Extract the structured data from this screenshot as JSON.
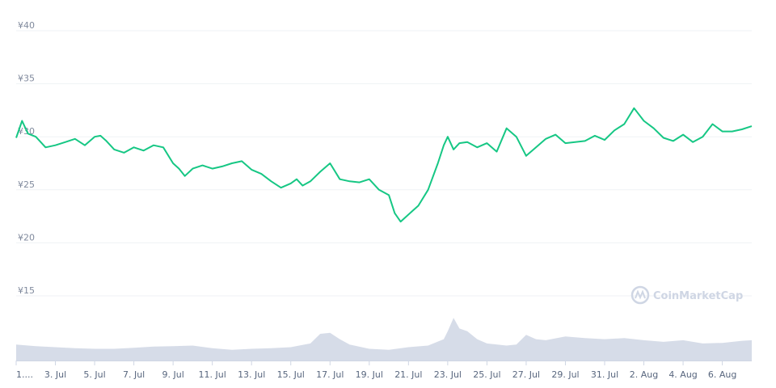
{
  "chart_data": {
    "type": "line",
    "title": "",
    "watermark": "CoinMarketCap",
    "line_color": "#16c784",
    "volume_color": "#cfd6e4",
    "y_ticks": [
      "¥15",
      "¥20",
      "¥25",
      "¥30",
      "¥35",
      "¥40"
    ],
    "y_tick_values": [
      15,
      20,
      25,
      30,
      35,
      40
    ],
    "ylim": [
      12.5,
      41.5
    ],
    "x_ticks": [
      "1....",
      "3. Jul",
      "5. Jul",
      "7. Jul",
      "9. Jul",
      "11. Jul",
      "13. Jul",
      "15. Jul",
      "17. Jul",
      "19. Jul",
      "21. Jul",
      "23. Jul",
      "25. Jul",
      "27. Jul",
      "29. Jul",
      "31. Jul",
      "2. Aug",
      "4. Aug",
      "6. Aug"
    ],
    "x_tick_days": [
      1,
      3,
      5,
      7,
      9,
      11,
      13,
      15,
      17,
      19,
      21,
      23,
      25,
      27,
      29,
      31,
      33,
      35,
      37
    ],
    "x_range_days": [
      1,
      38.5
    ],
    "price_series": {
      "name": "Price",
      "x_days": [
        1.0,
        1.3,
        1.6,
        2.0,
        2.5,
        3.0,
        3.5,
        4.0,
        4.5,
        5.0,
        5.3,
        5.6,
        6.0,
        6.5,
        7.0,
        7.5,
        8.0,
        8.5,
        9.0,
        9.3,
        9.6,
        10.0,
        10.5,
        11.0,
        11.5,
        12.0,
        12.5,
        13.0,
        13.5,
        14.0,
        14.5,
        15.0,
        15.3,
        15.6,
        16.0,
        16.5,
        17.0,
        17.5,
        18.0,
        18.5,
        19.0,
        19.5,
        20.0,
        20.3,
        20.6,
        20.9,
        21.2,
        21.5,
        22.0,
        22.5,
        22.8,
        23.0,
        23.3,
        23.6,
        24.0,
        24.5,
        25.0,
        25.5,
        26.0,
        26.5,
        27.0,
        27.5,
        28.0,
        28.5,
        29.0,
        29.5,
        30.0,
        30.5,
        31.0,
        31.5,
        32.0,
        32.5,
        33.0,
        33.5,
        34.0,
        34.5,
        35.0,
        35.5,
        36.0,
        36.5,
        37.0,
        37.5,
        38.0,
        38.5
      ],
      "values": [
        29.9,
        31.5,
        30.3,
        30.0,
        29.0,
        29.2,
        29.5,
        29.8,
        29.2,
        30.0,
        30.1,
        29.6,
        28.8,
        28.5,
        29.0,
        28.7,
        29.2,
        29.0,
        27.5,
        27.0,
        26.3,
        27.0,
        27.3,
        27.0,
        27.2,
        27.5,
        27.7,
        26.9,
        26.5,
        25.8,
        25.2,
        25.6,
        26.0,
        25.4,
        25.8,
        26.7,
        27.5,
        26.0,
        25.8,
        25.7,
        26.0,
        25.0,
        24.5,
        22.8,
        22.0,
        22.5,
        23.0,
        23.5,
        25.0,
        27.5,
        29.2,
        30.0,
        28.8,
        29.4,
        29.5,
        29.0,
        29.4,
        28.6,
        30.8,
        30.0,
        28.2,
        29.0,
        29.8,
        30.2,
        29.4,
        29.5,
        29.6,
        30.1,
        29.7,
        30.6,
        31.2,
        32.7,
        31.5,
        30.8,
        29.9,
        29.6,
        30.2,
        29.5,
        30.0,
        31.2,
        30.5,
        30.5,
        30.7,
        31.0
      ]
    },
    "volume_series": {
      "name": "Volume",
      "x_days": [
        1.0,
        2.0,
        3.0,
        4.0,
        5.0,
        6.0,
        7.0,
        8.0,
        9.0,
        10.0,
        11.0,
        12.0,
        13.0,
        14.0,
        15.0,
        16.0,
        16.5,
        17.0,
        17.5,
        18.0,
        19.0,
        20.0,
        21.0,
        22.0,
        22.8,
        23.0,
        23.3,
        23.6,
        24.0,
        24.5,
        25.0,
        26.0,
        26.5,
        27.0,
        27.5,
        28.0,
        29.0,
        30.0,
        31.0,
        32.0,
        33.0,
        34.0,
        35.0,
        36.0,
        37.0,
        38.0,
        38.5
      ],
      "values": [
        0.3,
        0.27,
        0.25,
        0.23,
        0.22,
        0.22,
        0.24,
        0.26,
        0.27,
        0.28,
        0.23,
        0.2,
        0.22,
        0.23,
        0.25,
        0.32,
        0.5,
        0.52,
        0.4,
        0.3,
        0.22,
        0.2,
        0.25,
        0.28,
        0.4,
        0.55,
        0.8,
        0.6,
        0.55,
        0.4,
        0.32,
        0.28,
        0.3,
        0.48,
        0.4,
        0.38,
        0.45,
        0.42,
        0.4,
        0.42,
        0.38,
        0.35,
        0.38,
        0.32,
        0.33,
        0.37,
        0.38
      ]
    }
  }
}
